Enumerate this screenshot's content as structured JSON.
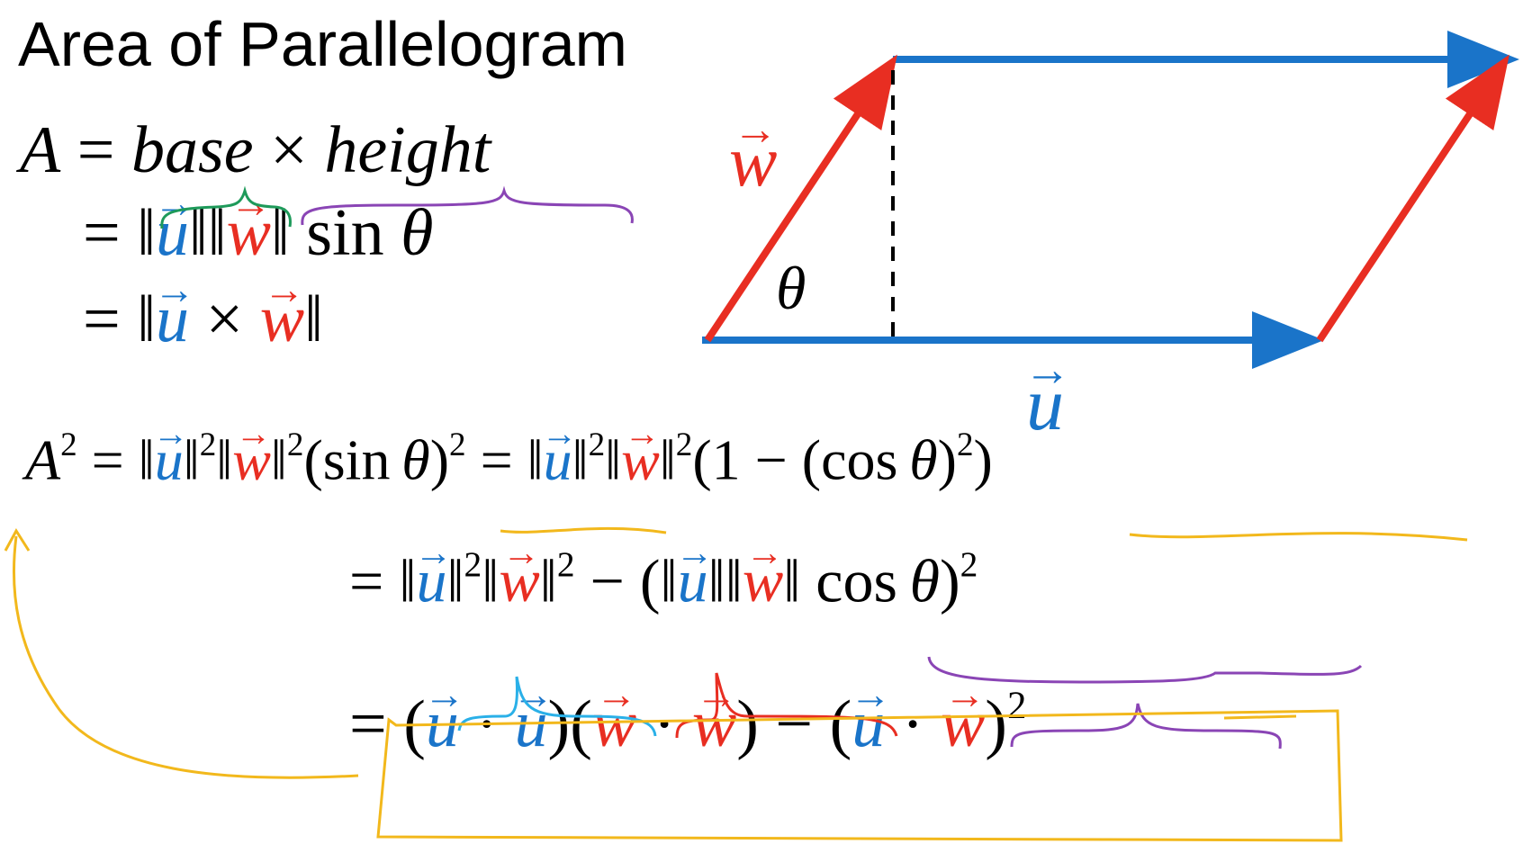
{
  "title": "Area of Parallelogram",
  "eq1": {
    "lhs": "A",
    "eq": "=",
    "base": "base",
    "times": "×",
    "height": "height"
  },
  "eq2": {
    "eq": "=",
    "norm": "‖",
    "u": "u",
    "w": "w",
    "sin": "sin",
    "theta": "θ"
  },
  "eq3": {
    "eq": "=",
    "norm": "‖",
    "u": "u",
    "times": "×",
    "w": "w"
  },
  "eq4": {
    "a": "A",
    "two": "2",
    "eq": "=",
    "norm": "‖",
    "u": "u",
    "w": "w",
    "open": "(",
    "close": ")",
    "sin": "sin",
    "theta": "θ",
    "one": "1",
    "minus": "−",
    "cos": "cos"
  },
  "eq5": {
    "eq": "=",
    "norm": "‖",
    "u": "u",
    "w": "w",
    "two": "2",
    "minus": "−",
    "open": "(",
    "close": ")",
    "cos": "cos",
    "theta": "θ"
  },
  "eq6": {
    "eq": "=",
    "open": "(",
    "close": ")",
    "u": "u",
    "w": "w",
    "dot": "·",
    "minus": "−",
    "two": "2"
  },
  "diagram": {
    "w_label": "w",
    "u_label": "u",
    "theta_label": "θ"
  },
  "colors": {
    "u": "#1a74c9",
    "w": "#e82e22",
    "brace_green": "#1e9a5a",
    "brace_purple": "#8a45b5",
    "brace_blue": "#2ab0e8",
    "highlight_yellow": "#f2b81c"
  }
}
